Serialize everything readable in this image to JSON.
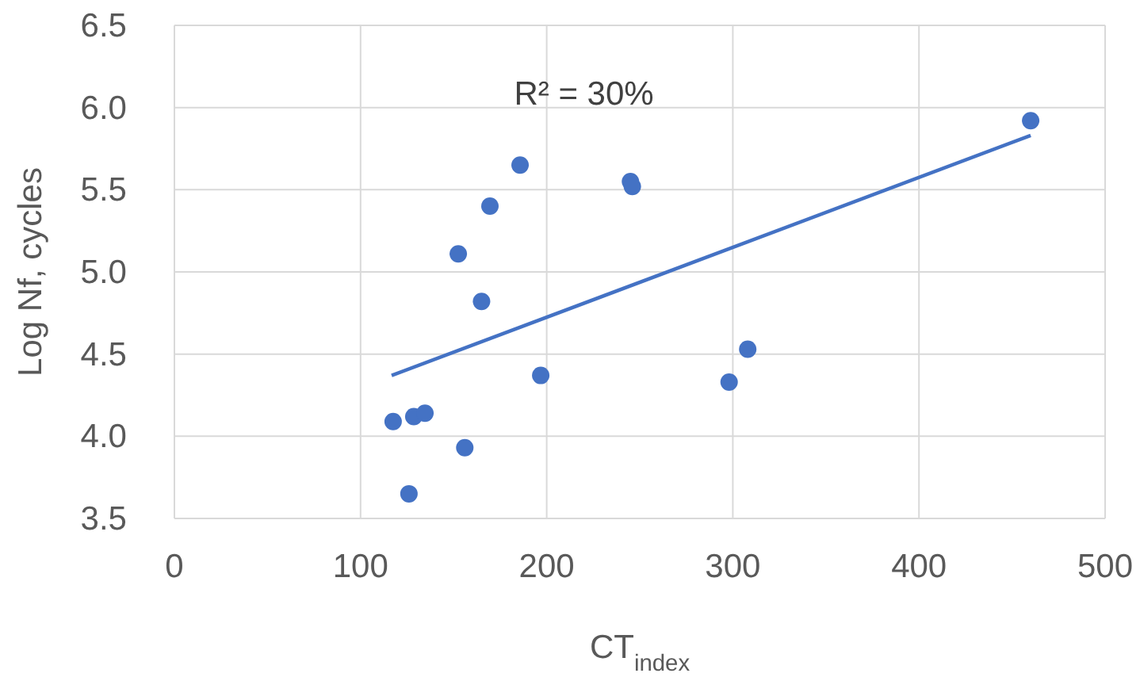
{
  "chart_data": {
    "type": "scatter",
    "xlabel": "CT$_{index}$",
    "ylabel": "Log Nf, cycles",
    "annotations": [
      "R² = 30%"
    ],
    "xlim": [
      0,
      500
    ],
    "xticks": [
      0,
      100,
      200,
      300,
      400,
      500
    ],
    "ylim": [
      3.5,
      6.5
    ],
    "yticks": [
      {
        "value": 3.5,
        "label": "3.5"
      },
      {
        "value": 4,
        "label": "4.0"
      },
      {
        "value": 4.5,
        "label": "4.5"
      },
      {
        "value": 5,
        "label": "5.0"
      },
      {
        "value": 5.5,
        "label": "5.5"
      },
      {
        "value": 6,
        "label": "6.0"
      },
      {
        "value": 6.5,
        "label": "6.5"
      }
    ],
    "grid": true,
    "series": [
      {
        "marker": "circle",
        "color": "#4472c4",
        "x": [
          117.5,
          128.6,
          134.6,
          126,
          156,
          152.5,
          169.5,
          165,
          185.7,
          196.8,
          245,
          246,
          298,
          308,
          460
        ],
        "values": [
          4.09,
          4.12,
          4.14,
          3.65,
          3.93,
          5.11,
          5.4,
          4.82,
          5.65,
          4.37,
          5.55,
          5.52,
          4.33,
          4.53,
          5.92
        ]
      },
      {
        "type": "line",
        "color": "#4472c4",
        "x": [
          116.7,
          460
        ],
        "values": [
          4.37,
          5.83
        ],
        "line_style": "solid"
      }
    ]
  }
}
